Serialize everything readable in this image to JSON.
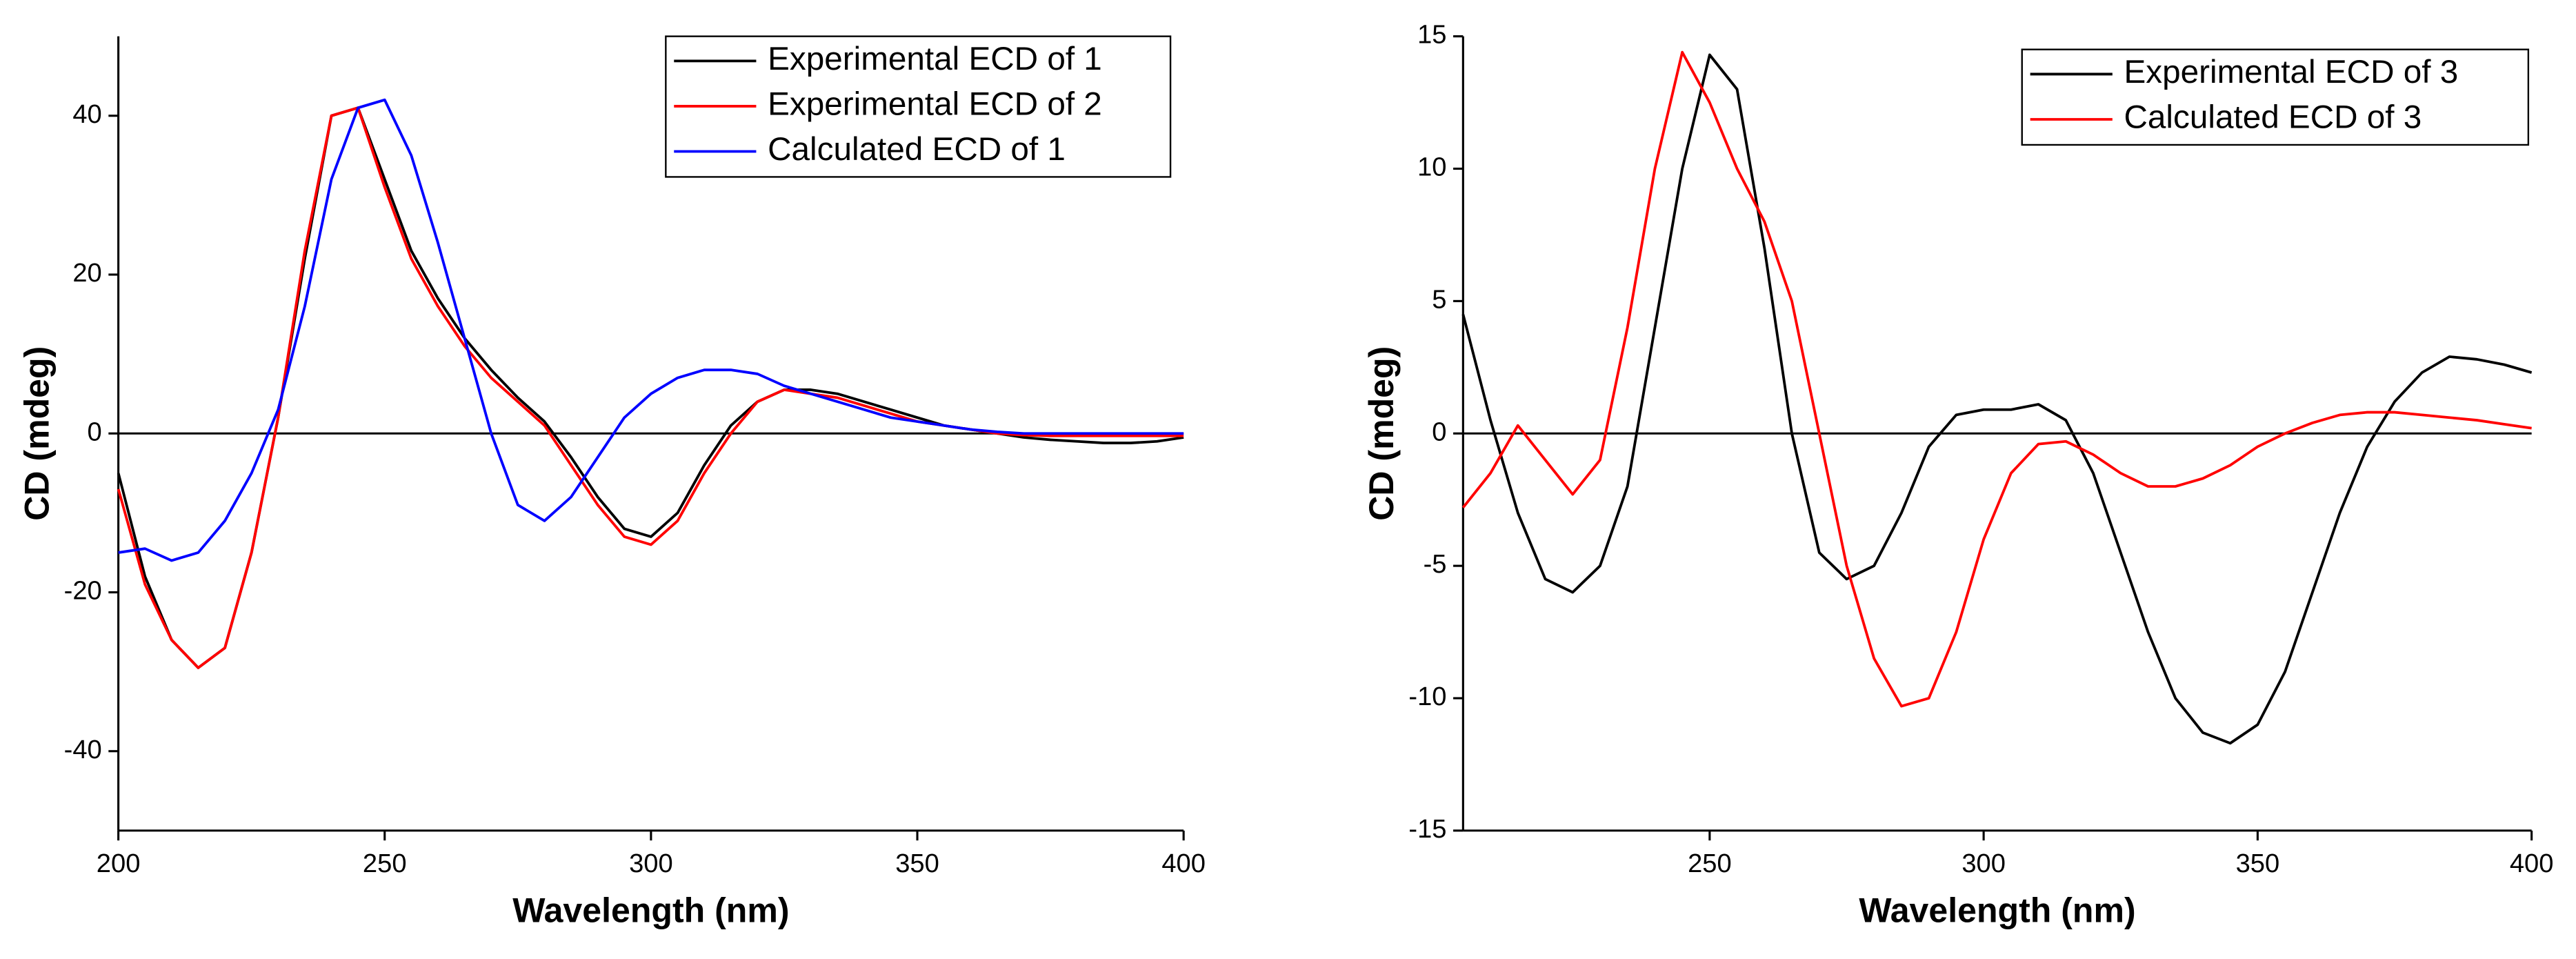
{
  "chart_data": [
    {
      "type": "line",
      "x": [
        200,
        205,
        210,
        215,
        220,
        225,
        230,
        235,
        240,
        245,
        250,
        255,
        260,
        265,
        270,
        275,
        280,
        285,
        290,
        295,
        300,
        305,
        310,
        315,
        320,
        325,
        330,
        335,
        340,
        345,
        350,
        355,
        360,
        365,
        370,
        375,
        380,
        385,
        390,
        395,
        400
      ],
      "series": [
        {
          "name": "Experimental ECD of 1",
          "color": "#000000",
          "values": [
            -5,
            -18,
            -26,
            -29.5,
            -27,
            -15,
            2,
            22,
            40,
            41,
            32,
            23,
            17,
            12,
            8,
            4.5,
            1.5,
            -3,
            -8,
            -12,
            -13,
            -10,
            -4,
            1,
            4,
            5.5,
            5.5,
            5,
            4,
            3,
            2,
            1,
            0.5,
            0,
            -0.5,
            -0.8,
            -1,
            -1.2,
            -1.2,
            -1,
            -0.5
          ]
        },
        {
          "name": "Experimental ECD of 2",
          "color": "#ff0000",
          "values": [
            -7,
            -19,
            -26,
            -29.5,
            -27,
            -15,
            2,
            23,
            40,
            41,
            31,
            22,
            16,
            11,
            7,
            4,
            1,
            -4,
            -9,
            -13,
            -14,
            -11,
            -5,
            0,
            4,
            5.5,
            5,
            4.5,
            3.5,
            2.5,
            1.5,
            1,
            0.5,
            0,
            -0.2,
            -0.3,
            -0.3,
            -0.3,
            -0.3,
            -0.3,
            -0.3
          ]
        },
        {
          "name": "Calculated ECD of 1",
          "color": "#0000ff",
          "values": [
            -15,
            -14.5,
            -16,
            -15,
            -11,
            -5,
            3,
            16,
            32,
            41,
            42,
            35,
            24,
            12,
            0,
            -9,
            -11,
            -8,
            -3,
            2,
            5,
            7,
            8,
            8,
            7.5,
            6,
            5,
            4,
            3,
            2,
            1.5,
            1,
            0.5,
            0.2,
            0,
            0,
            0,
            0,
            0,
            0,
            0
          ]
        }
      ],
      "xlabel": "Wavelength (nm)",
      "ylabel": "CD (mdeg)",
      "xlim": [
        200,
        400
      ],
      "xticks": [
        200,
        250,
        300,
        350,
        400
      ],
      "ylim": [
        -50,
        50
      ],
      "yticks": [
        -40,
        -20,
        0,
        20,
        40
      ]
    },
    {
      "type": "line",
      "x": [
        205,
        210,
        215,
        220,
        225,
        230,
        235,
        240,
        245,
        250,
        255,
        260,
        265,
        270,
        275,
        280,
        285,
        290,
        295,
        300,
        305,
        310,
        315,
        320,
        325,
        330,
        335,
        340,
        345,
        350,
        355,
        360,
        365,
        370,
        375,
        380,
        385,
        390,
        395,
        400
      ],
      "series": [
        {
          "name": "Experimental ECD of 3",
          "color": "#000000",
          "values": [
            4.5,
            0.5,
            -3,
            -5.5,
            -6,
            -5,
            -2,
            4,
            10,
            14.3,
            13,
            7,
            0,
            -4.5,
            -5.5,
            -5,
            -3,
            -0.5,
            0.7,
            0.9,
            0.9,
            1.1,
            0.5,
            -1.5,
            -4.5,
            -7.5,
            -10,
            -11.3,
            -11.7,
            -11,
            -9,
            -6,
            -3,
            -0.5,
            1.2,
            2.3,
            2.9,
            2.8,
            2.6,
            2.3
          ]
        },
        {
          "name": "Calculated ECD of 3",
          "color": "#ff0000",
          "values": [
            -2.8,
            -1.5,
            0.3,
            -1,
            -2.3,
            -1,
            4,
            10,
            14.4,
            12.5,
            10,
            8,
            5,
            0,
            -5,
            -8.5,
            -10.3,
            -10,
            -7.5,
            -4,
            -1.5,
            -0.4,
            -0.3,
            -0.8,
            -1.5,
            -2,
            -2,
            -1.7,
            -1.2,
            -0.5,
            0,
            0.4,
            0.7,
            0.8,
            0.8,
            0.7,
            0.6,
            0.5,
            0.35,
            0.2
          ]
        }
      ],
      "xlabel": "Wavelength (nm)",
      "ylabel": "CD (mdeg)",
      "xlim": [
        205,
        400
      ],
      "xticks": [
        250,
        300,
        350,
        400
      ],
      "ylim": [
        -15,
        15
      ],
      "yticks": [
        -15,
        -10,
        -5,
        0,
        5,
        10,
        15
      ]
    }
  ]
}
